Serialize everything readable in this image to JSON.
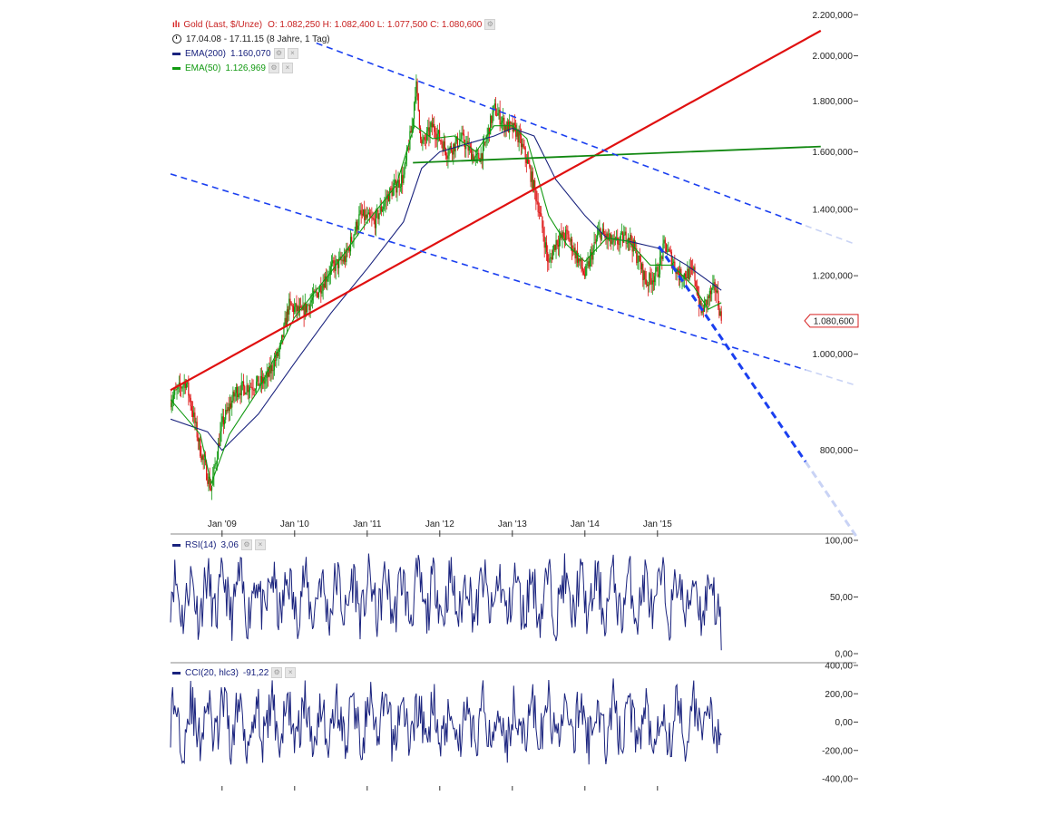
{
  "instrument": {
    "name": "Gold (Last, $/Unze)",
    "ohlc": "O: 1.082,250  H: 1.082,400  L: 1.077,500  C: 1.080,600",
    "range": "17.04.08 - 17.11.15 (8 Jahre, 1 Tag)",
    "last_price_label": "1.080,600"
  },
  "indicators": {
    "ema200": {
      "label": "EMA(200)",
      "value": "1.160,070",
      "color": "#1a237e"
    },
    "ema50": {
      "label": "EMA(50)",
      "value": "1.126,969",
      "color": "#119911"
    },
    "rsi": {
      "label": "RSI(14)",
      "value": "3,06",
      "color": "#1a237e"
    },
    "cci": {
      "label": "CCI(20, hlc3)",
      "value": "-91,22",
      "color": "#1a237e"
    }
  },
  "colors": {
    "candle_up": "#119911",
    "candle_down": "#dd1111",
    "trend_red": "#e01010",
    "trend_green": "#118811",
    "trend_blue": "#1a3ff0"
  },
  "chart_data": [
    {
      "type": "candlestick",
      "title": "Gold (Last, $/Unze)",
      "scale": "log",
      "x_ticks": [
        "Jan '09",
        "Jan '10",
        "Jan '11",
        "Jan '12",
        "Jan '13",
        "Jan '14",
        "Jan '15"
      ],
      "y_ticks": [
        "800,000",
        "1.000,000",
        "1.200,000",
        "1.400,000",
        "1.600,000",
        "1.800,000",
        "2.000,000",
        "2.200,000"
      ],
      "ylim": [
        660,
        2220
      ],
      "xlim": [
        2008.29,
        2017.74
      ],
      "series": [
        {
          "name": "Gold",
          "x": [
            2008.29,
            2008.5,
            2008.7,
            2008.85,
            2009.0,
            2009.2,
            2009.4,
            2009.6,
            2009.8,
            2009.92,
            2010.1,
            2010.3,
            2010.5,
            2010.7,
            2010.9,
            2011.1,
            2011.3,
            2011.5,
            2011.62,
            2011.67,
            2011.75,
            2011.9,
            2012.1,
            2012.3,
            2012.5,
            2012.6,
            2012.75,
            2012.9,
            2013.05,
            2013.2,
            2013.35,
            2013.5,
            2013.6,
            2013.75,
            2013.9,
            2014.0,
            2014.2,
            2014.4,
            2014.6,
            2014.85,
            2015.0,
            2015.1,
            2015.3,
            2015.5,
            2015.6,
            2015.7,
            2015.8,
            2015.88
          ],
          "y": [
            900,
            940,
            800,
            730,
            850,
            920,
            930,
            940,
            1010,
            1120,
            1100,
            1150,
            1220,
            1250,
            1380,
            1360,
            1450,
            1510,
            1700,
            1880,
            1620,
            1700,
            1600,
            1650,
            1570,
            1600,
            1770,
            1700,
            1680,
            1570,
            1420,
            1230,
            1300,
            1320,
            1250,
            1200,
            1330,
            1290,
            1320,
            1180,
            1210,
            1290,
            1200,
            1210,
            1100,
            1140,
            1170,
            1080
          ]
        },
        {
          "name": "EMA(200)",
          "x": [
            2008.29,
            2008.8,
            2009.0,
            2009.5,
            2010.0,
            2010.5,
            2011.0,
            2011.5,
            2011.75,
            2012.0,
            2012.5,
            2012.75,
            2013.0,
            2013.3,
            2013.6,
            2014.0,
            2014.3,
            2014.6,
            2015.0,
            2015.4,
            2015.88
          ],
          "y": [
            860,
            835,
            800,
            870,
            980,
            1100,
            1220,
            1360,
            1540,
            1600,
            1640,
            1660,
            1690,
            1660,
            1500,
            1380,
            1310,
            1300,
            1280,
            1230,
            1160
          ]
        },
        {
          "name": "EMA(50)",
          "x": [
            2008.29,
            2008.7,
            2008.85,
            2009.1,
            2009.5,
            2010.0,
            2010.5,
            2011.0,
            2011.4,
            2011.65,
            2011.9,
            2012.2,
            2012.5,
            2012.75,
            2013.0,
            2013.2,
            2013.5,
            2013.75,
            2014.0,
            2014.3,
            2014.6,
            2014.9,
            2015.2,
            2015.5,
            2015.7,
            2015.88
          ],
          "y": [
            900,
            830,
            740,
            830,
            920,
            1090,
            1210,
            1360,
            1480,
            1700,
            1650,
            1660,
            1600,
            1700,
            1700,
            1650,
            1380,
            1290,
            1240,
            1310,
            1300,
            1230,
            1230,
            1170,
            1110,
            1127
          ]
        }
      ],
      "trendlines": [
        {
          "color": "red",
          "points": [
            [
              2008.29,
              920
            ],
            [
              2017.25,
              2120
            ]
          ]
        },
        {
          "color": "green",
          "points": [
            [
              2011.63,
              1560
            ],
            [
              2017.25,
              1620
            ]
          ]
        },
        {
          "color": "blue",
          "points": [
            [
              2010.3,
              2060
            ],
            [
              2017.74,
              1290
            ]
          ]
        },
        {
          "color": "blue",
          "points": [
            [
              2008.29,
              1520
            ],
            [
              2017.74,
              930
            ]
          ]
        },
        {
          "color": "blue",
          "points": [
            [
              2015.02,
              1285
            ],
            [
              2017.74,
              655
            ]
          ]
        }
      ]
    },
    {
      "type": "line",
      "title": "RSI(14)",
      "y_ticks": [
        "0,00",
        "50,00",
        "100,00"
      ],
      "ylim": [
        0,
        100
      ],
      "last": 3.06
    },
    {
      "type": "line",
      "title": "CCI(20, hlc3)",
      "y_ticks": [
        "-400,00",
        "-200,00",
        "0,00",
        "200,00",
        "400,00"
      ],
      "ylim": [
        -400,
        400
      ],
      "last": -91.22
    }
  ]
}
